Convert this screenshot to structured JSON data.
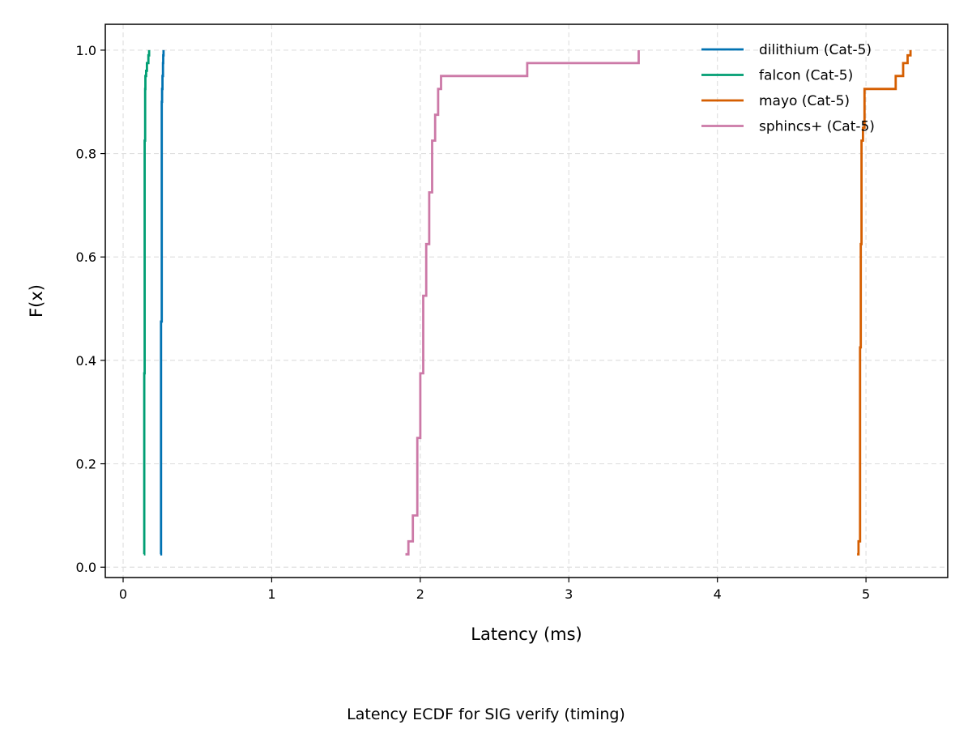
{
  "chart_data": {
    "type": "line",
    "step": true,
    "title": "",
    "caption": "Latency ECDF for SIG verify (timing)",
    "xlabel": "Latency (ms)",
    "ylabel": "F(x)",
    "xlim": [
      -0.12,
      5.55
    ],
    "ylim": [
      -0.02,
      1.05
    ],
    "xticks": [
      0,
      1,
      2,
      3,
      4,
      5
    ],
    "xtick_labels": [
      "0",
      "1",
      "2",
      "3",
      "4",
      "5"
    ],
    "yticks": [
      0.0,
      0.2,
      0.4,
      0.6,
      0.8,
      1.0
    ],
    "ytick_labels": [
      "0.0",
      "0.2",
      "0.4",
      "0.6",
      "0.8",
      "1.0"
    ],
    "grid": true,
    "legend_position": "top-right",
    "series": [
      {
        "name": "dilithium (Cat-5)",
        "color": "#0072b2",
        "x": [
          0.25,
          0.255,
          0.26,
          0.262,
          0.265,
          0.268,
          0.27,
          0.272
        ],
        "y": [
          0.025,
          0.475,
          0.9,
          0.925,
          0.95,
          0.975,
          0.99,
          1.0
        ]
      },
      {
        "name": "falcon (Cat-5)",
        "color": "#009e73",
        "x": [
          0.14,
          0.142,
          0.145,
          0.148,
          0.15,
          0.155,
          0.16,
          0.17,
          0.175
        ],
        "y": [
          0.025,
          0.375,
          0.825,
          0.925,
          0.95,
          0.96,
          0.975,
          0.99,
          1.0
        ]
      },
      {
        "name": "mayo (Cat-5)",
        "color": "#d55e00",
        "x": [
          4.94,
          4.95,
          4.96,
          4.965,
          4.97,
          4.98,
          4.99,
          5.2,
          5.25,
          5.28,
          5.3
        ],
        "y": [
          0.025,
          0.05,
          0.425,
          0.625,
          0.825,
          0.85,
          0.925,
          0.95,
          0.975,
          0.99,
          1.0
        ]
      },
      {
        "name": "sphincs+ (Cat-5)",
        "color": "#cc79a7",
        "x": [
          1.9,
          1.92,
          1.95,
          1.98,
          2.0,
          2.02,
          2.04,
          2.06,
          2.08,
          2.1,
          2.12,
          2.14,
          2.72,
          3.47
        ],
        "y": [
          0.025,
          0.05,
          0.1,
          0.25,
          0.375,
          0.525,
          0.625,
          0.725,
          0.825,
          0.875,
          0.925,
          0.95,
          0.975,
          1.0
        ]
      }
    ]
  }
}
